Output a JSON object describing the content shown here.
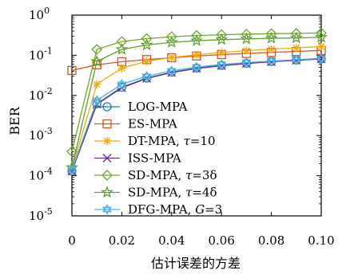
{
  "chart_data": {
    "type": "line",
    "xlabel": "估计误差的方差",
    "ylabel": "BER",
    "yscale": "log",
    "xlim": [
      0,
      0.1
    ],
    "ylim": [
      1e-05,
      1
    ],
    "x_ticks": [
      {
        "value": 0,
        "label": "0"
      },
      {
        "value": 0.02,
        "label": "0.02"
      },
      {
        "value": 0.04,
        "label": "0.04"
      },
      {
        "value": 0.06,
        "label": "0.06"
      },
      {
        "value": 0.08,
        "label": "0.08"
      },
      {
        "value": 0.1,
        "label": "0.10"
      }
    ],
    "y_ticks": [
      {
        "value": 1,
        "base": "10",
        "exp": "0"
      },
      {
        "value": 0.1,
        "base": "10",
        "exp": "-1"
      },
      {
        "value": 0.01,
        "base": "10",
        "exp": "-2"
      },
      {
        "value": 0.001,
        "base": "10",
        "exp": "-3"
      },
      {
        "value": 0.0001,
        "base": "10",
        "exp": "-4"
      },
      {
        "value": 1e-05,
        "base": "10",
        "exp": "-5"
      }
    ],
    "grid": false,
    "legend_position": "center-right",
    "x": [
      0,
      0.01,
      0.02,
      0.03,
      0.04,
      0.05,
      0.06,
      0.07,
      0.08,
      0.09,
      0.1
    ],
    "series": [
      {
        "name": "LOG-MPA",
        "color": "#1f77b4",
        "marker": "circle",
        "values": [
          0.00013,
          0.0062,
          0.016,
          0.027,
          0.038,
          0.048,
          0.056,
          0.063,
          0.07,
          0.076,
          0.082
        ]
      },
      {
        "name": "ES-MPA",
        "color": "#d9541e",
        "marker": "square",
        "values": [
          0.042,
          0.058,
          0.069,
          0.078,
          0.087,
          0.096,
          0.104,
          0.111,
          0.118,
          0.125,
          0.132
        ]
      },
      {
        "name": "DT-MPA, τ=10",
        "name_main": "DT-MPA, ",
        "name_var": "τ",
        "name_tail": "=10",
        "color": "#f2a900",
        "marker": "asterisk",
        "values": [
          0.00015,
          0.019,
          0.048,
          0.071,
          0.088,
          0.103,
          0.118,
          0.13,
          0.142,
          0.153,
          0.165
        ]
      },
      {
        "name": "ISS-MPA",
        "color": "#6a2c91",
        "marker": "x",
        "values": [
          0.00013,
          0.006,
          0.0155,
          0.0265,
          0.037,
          0.047,
          0.055,
          0.062,
          0.069,
          0.075,
          0.081
        ]
      },
      {
        "name": "SD-MPA, τ=3δ",
        "name_main": "SD-MPA, ",
        "name_var": "τ",
        "name_tail": "=3δ",
        "color": "#6fa82b",
        "marker": "diamond",
        "values": [
          0.0004,
          0.14,
          0.22,
          0.26,
          0.29,
          0.31,
          0.325,
          0.335,
          0.345,
          0.35,
          0.36
        ]
      },
      {
        "name": "SD-MPA, τ=4δ",
        "name_main": "SD-MPA, ",
        "name_var": "τ",
        "name_tail": "=4δ",
        "color": "#5e9f2e",
        "marker": "star",
        "values": [
          0.00016,
          0.07,
          0.14,
          0.18,
          0.21,
          0.23,
          0.245,
          0.255,
          0.265,
          0.27,
          0.28
        ]
      },
      {
        "name": "DFG-MPA, G=3",
        "name_main": "DFG-MPA, ",
        "name_var": "G",
        "name_tail": "=3",
        "color": "#4ab3e8",
        "marker": "hexagram",
        "values": [
          0.00014,
          0.0075,
          0.019,
          0.03,
          0.041,
          0.051,
          0.059,
          0.066,
          0.072,
          0.078,
          0.084
        ]
      }
    ]
  }
}
